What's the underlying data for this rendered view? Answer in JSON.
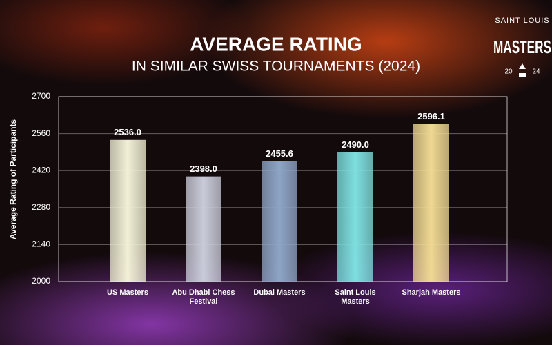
{
  "chart_data": {
    "type": "bar",
    "title": "AVERAGE RATING",
    "subtitle": "IN SIMILAR SWISS TOURNAMENTS (2024)",
    "y_label": "Average Rating of Participants",
    "categories": [
      "US Masters",
      "Abu Dhabi Chess Festival",
      "Dubai Masters",
      "Saint Louis Masters",
      "Sharjah Masters"
    ],
    "values": [
      2536.0,
      2398.0,
      2455.6,
      2490.0,
      2596.1
    ],
    "value_labels": [
      "2536.0",
      "2398.0",
      "2455.6",
      "2490.0",
      "2596.1"
    ],
    "colors": [
      "#f2f0d6",
      "#c9cbd9",
      "#8ea5c6",
      "#7edfe0",
      "#efd892"
    ],
    "ylim": [
      2000,
      2700
    ],
    "yticks": [
      2000,
      2140,
      2280,
      2420,
      2560,
      2700
    ],
    "grid": true
  },
  "logo": {
    "top": "SAINT LOUIS",
    "main": "MASTERS",
    "year_left": "20",
    "year_right": "24"
  }
}
